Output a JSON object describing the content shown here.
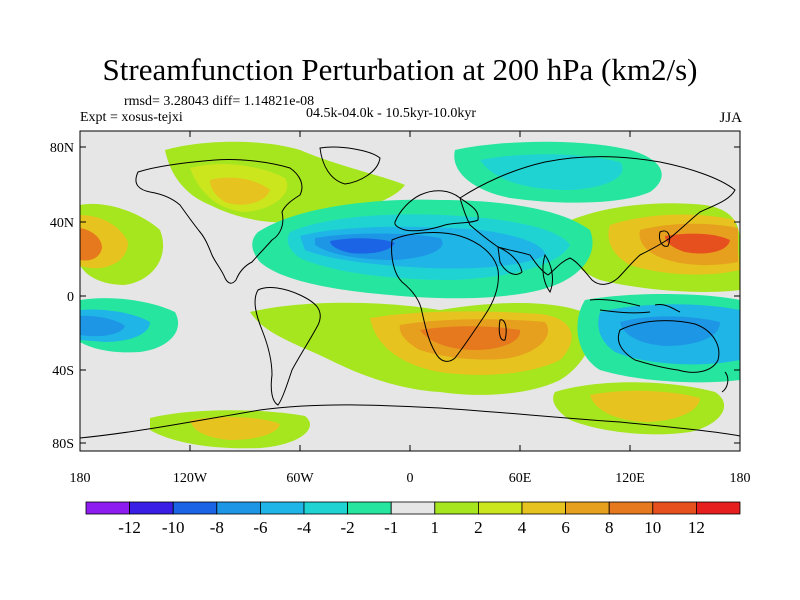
{
  "title": "Streamfunction Perturbation at 200 hPa (km2/s)",
  "stats": "rmsd= 3.28043 diff= 1.14821e-08",
  "expt": "Expt = xosus-tejxi",
  "period": "04.5k-04.0k - 10.5kyr-10.0kyr",
  "season": "JJA",
  "lat_ticks": [
    "80N",
    "40N",
    "0",
    "40S",
    "80S"
  ],
  "lon_ticks": [
    "180",
    "120W",
    "60W",
    "0",
    "60E",
    "120E",
    "180"
  ],
  "colorbar": {
    "labels": [
      "-12",
      "-10",
      "-8",
      "-6",
      "-4",
      "-2",
      "-1",
      "1",
      "2",
      "4",
      "6",
      "8",
      "10",
      "12"
    ],
    "colors": [
      "#8c1cf0",
      "#3a1ee6",
      "#1c64e6",
      "#1e96e6",
      "#1fb5e6",
      "#1fd3d3",
      "#26e69f",
      "#e6e6e6",
      "#a6e61e",
      "#cce61e",
      "#e6c31e",
      "#e6a01e",
      "#e6781e",
      "#e6501e",
      "#e61e1e"
    ]
  }
}
